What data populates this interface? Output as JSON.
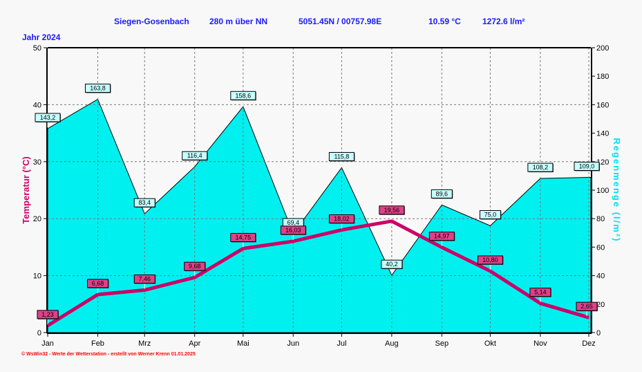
{
  "header": {
    "station": "Siegen-Gosenbach",
    "altitude": "280 m über NN",
    "coords": "5051.45N / 00757.98E",
    "mean_temp": "10.59 °C",
    "total_rain": "1272.6 l/m²",
    "year": "Jahr  2024"
  },
  "footer": "© WsWin32  -  Werte der Wetterstation  -  erstellt von Werner Krenn   01.01.2025",
  "chart_data": {
    "type": "line+area",
    "categories": [
      "Jan",
      "Feb",
      "Mrz",
      "Apr",
      "Mai",
      "Jun",
      "Jul",
      "Aug",
      "Sep",
      "Okt",
      "Nov",
      "Dez"
    ],
    "ylabel": "Temperatur  (°C)",
    "y2label": "Regenmenge  (l/m²)",
    "ylim": [
      0,
      50
    ],
    "y2lim": [
      0,
      200
    ],
    "yticks": [
      0,
      10,
      20,
      30,
      40,
      50
    ],
    "y2ticks": [
      0,
      20,
      40,
      60,
      80,
      100,
      120,
      140,
      160,
      180,
      200
    ],
    "grid": true,
    "series": [
      {
        "axis": "left",
        "type": "line",
        "color": "#cc0066",
        "values": [
          1.23,
          6.68,
          7.46,
          9.68,
          14.75,
          16.03,
          18.02,
          19.56,
          14.97,
          10.8,
          5.14,
          2.65
        ],
        "labels": [
          "1,23",
          "6,68",
          "7,46",
          "9,68",
          "14,75",
          "16,03",
          "18,02",
          "19,56",
          "14,97",
          "10,80",
          "5,14",
          "2,65"
        ]
      },
      {
        "axis": "right",
        "type": "area",
        "color": "#00f0f0",
        "values": [
          143.2,
          163.8,
          83.4,
          116.4,
          158.6,
          69.4,
          115.8,
          40.2,
          89.6,
          75.0,
          108.2,
          109.0
        ],
        "labels": [
          "143,2",
          "163,8",
          "83,4",
          "116,4",
          "158,6",
          "69,4",
          "115,8",
          "40,2",
          "89,6",
          "75,0",
          "108,2",
          "109,0"
        ]
      }
    ]
  }
}
